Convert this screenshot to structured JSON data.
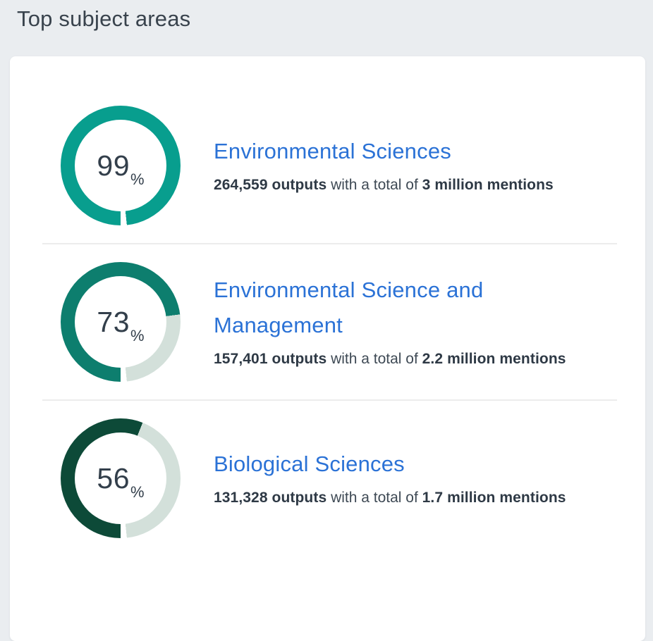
{
  "header": {
    "title": "Top subject areas"
  },
  "donut": {
    "symbol": "%",
    "remainder_color": "#d3e0da",
    "gap_color": "#ffffff",
    "gap_start_deg": 354,
    "start_angle_deg": 180
  },
  "colors": {
    "page_background": "#eaedf0",
    "card_background": "#ffffff",
    "link_blue": "#2b72d6",
    "heading_text": "#39434d",
    "body_text": "#3f4a55",
    "divider": "#ececec"
  },
  "subjects": [
    {
      "name": "Environmental Sciences",
      "percent": 99,
      "color": "#089e8e",
      "outputs": "264,559 outputs",
      "connector": "with a total of",
      "mentions": "3 million mentions"
    },
    {
      "name": "Environmental Science and Management",
      "percent": 73,
      "color": "#0d7e6e",
      "outputs": "157,401 outputs",
      "connector": "with a total of",
      "mentions": "2.2 million mentions"
    },
    {
      "name": "Biological Sciences",
      "percent": 56,
      "color": "#0d4a38",
      "outputs": "131,328 outputs",
      "connector": "with a total of",
      "mentions": "1.7 million mentions"
    }
  ],
  "chart_data": {
    "type": "pie",
    "title": "Top subject areas",
    "legend_position": "none",
    "items": [
      {
        "label": "Environmental Sciences",
        "percent": 99,
        "slices": [
          99,
          1
        ],
        "outputs": 264559,
        "mentions_total": "3 million"
      },
      {
        "label": "Environmental Science and Management",
        "percent": 73,
        "slices": [
          73,
          27
        ],
        "outputs": 157401,
        "mentions_total": "2.2 million"
      },
      {
        "label": "Biological Sciences",
        "percent": 56,
        "slices": [
          56,
          44
        ],
        "outputs": 131328,
        "mentions_total": "1.7 million"
      }
    ]
  }
}
